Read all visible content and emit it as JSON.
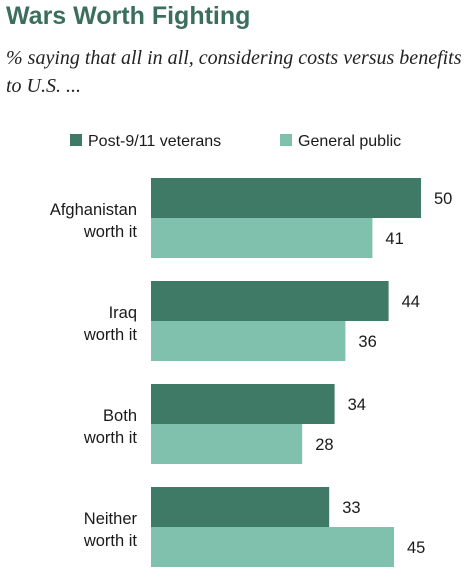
{
  "header": {
    "title": "Wars Worth Fighting",
    "subtitle": "% saying that all in all, considering costs versus benefits to U.S. ..."
  },
  "colors": {
    "veterans": "#3f7a66",
    "public": "#7fc1ad",
    "title": "#3c6e5e"
  },
  "chart_data": {
    "type": "bar",
    "orientation": "horizontal",
    "categories": [
      [
        "Afghanistan",
        "worth it"
      ],
      [
        "Iraq",
        "worth it"
      ],
      [
        "Both",
        "worth it"
      ],
      [
        "Neither",
        "worth it"
      ]
    ],
    "series": [
      {
        "name": "Post-9/11 veterans",
        "values": [
          50,
          44,
          34,
          33
        ]
      },
      {
        "name": "General public",
        "values": [
          41,
          36,
          28,
          45
        ]
      }
    ],
    "xlim": [
      0,
      50
    ],
    "legend": "top",
    "grid": false
  }
}
